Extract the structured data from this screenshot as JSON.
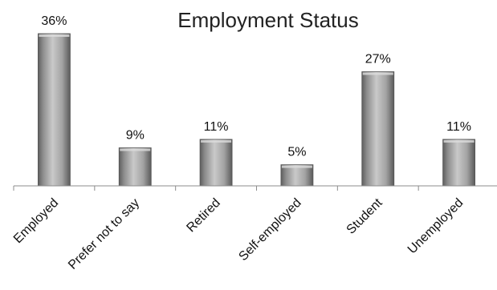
{
  "chart_data": {
    "type": "bar",
    "title": "Employment Status",
    "categories": [
      "Employed",
      "Prefer not to say",
      "Retired",
      "Self-employed",
      "Student",
      "Unemployed"
    ],
    "values": [
      36,
      9,
      11,
      5,
      27,
      11
    ],
    "value_labels": [
      "36%",
      "9%",
      "11%",
      "5%",
      "27%",
      "11%"
    ],
    "unit": "%",
    "xlabel": "",
    "ylabel": "",
    "ylim": [
      0,
      36
    ],
    "grid": false,
    "legend": "none",
    "bar_color": "#9a9a9a"
  }
}
